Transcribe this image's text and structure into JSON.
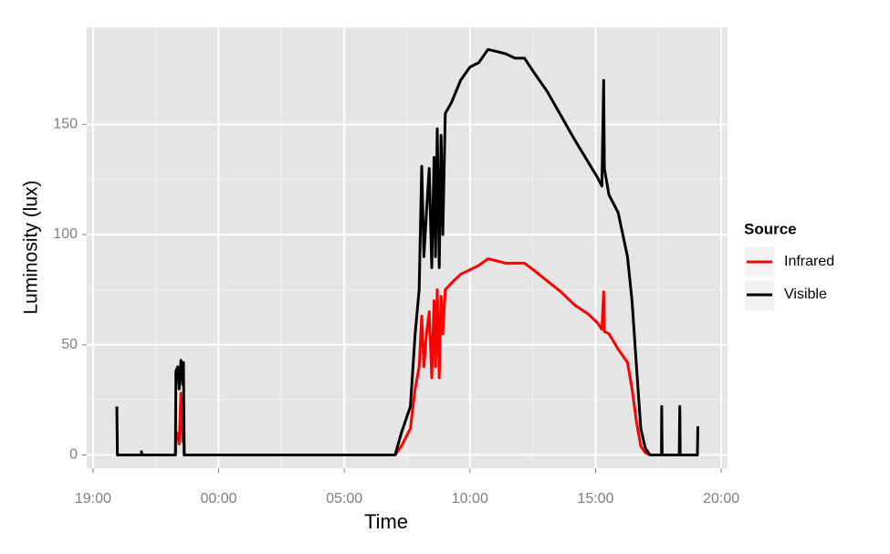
{
  "chart_data": {
    "type": "line",
    "xlabel": "Time",
    "ylabel": "Luminosity (lux)",
    "legend_title": "Source",
    "legend": "right",
    "grid": true,
    "xlim": [
      18.75,
      44.25
    ],
    "xticks": [
      {
        "value": 19,
        "label": "19:00"
      },
      {
        "value": 24,
        "label": "00:00"
      },
      {
        "value": 29,
        "label": "05:00"
      },
      {
        "value": 34,
        "label": "10:00"
      },
      {
        "value": 39,
        "label": "15:00"
      },
      {
        "value": 44,
        "label": "20:00"
      }
    ],
    "ylim": [
      -6,
      194
    ],
    "yticks": [
      0,
      50,
      100,
      150
    ],
    "x": [
      19.95,
      19.97,
      20.92,
      20.93,
      20.95,
      22.28,
      22.3,
      22.37,
      22.43,
      22.5,
      22.57,
      22.6,
      22.63,
      31.02,
      31.27,
      31.63,
      31.82,
      31.98,
      32.08,
      32.17,
      32.27,
      32.38,
      32.48,
      32.57,
      32.63,
      32.7,
      32.78,
      32.85,
      32.92,
      33.02,
      33.27,
      33.63,
      34.0,
      34.35,
      34.72,
      35.08,
      35.43,
      35.8,
      36.17,
      36.52,
      37.07,
      37.62,
      38.17,
      38.7,
      39.07,
      39.25,
      39.32,
      39.35,
      39.53,
      39.9,
      40.27,
      40.45,
      40.63,
      40.8,
      40.98,
      41.17,
      41.62,
      41.63,
      41.65,
      42.33,
      42.35,
      42.37,
      43.05,
      43.07
    ],
    "series": [
      {
        "name": "Infrared",
        "color": "#ff0000",
        "values": [
          0,
          0,
          0,
          0,
          0,
          0,
          8,
          10,
          5,
          28,
          6,
          18,
          0,
          0,
          4,
          12,
          30,
          40,
          63,
          40,
          55,
          65,
          35,
          70,
          40,
          75,
          35,
          72,
          55,
          75,
          78,
          82,
          84,
          86,
          89,
          88,
          87,
          87,
          87,
          84,
          79,
          74,
          68,
          64,
          60,
          57,
          74,
          56,
          55,
          48,
          42,
          30,
          15,
          4,
          1,
          0,
          0,
          0,
          0,
          0,
          0,
          0,
          0,
          0
        ]
      },
      {
        "name": "Visible",
        "color": "#000000",
        "values": [
          22,
          0,
          0,
          1.5,
          0,
          0,
          38,
          40,
          30,
          43,
          32,
          42,
          0,
          0,
          10,
          22,
          55,
          75,
          131,
          90,
          110,
          130,
          85,
          135,
          90,
          148,
          85,
          145,
          100,
          155,
          160,
          170,
          176,
          178,
          184,
          183,
          182,
          180,
          180,
          174,
          165,
          154,
          143,
          133,
          126,
          122,
          170,
          130,
          118,
          110,
          90,
          70,
          40,
          12,
          3,
          0,
          0,
          22,
          0,
          0,
          22,
          0,
          0,
          13
        ]
      }
    ]
  }
}
